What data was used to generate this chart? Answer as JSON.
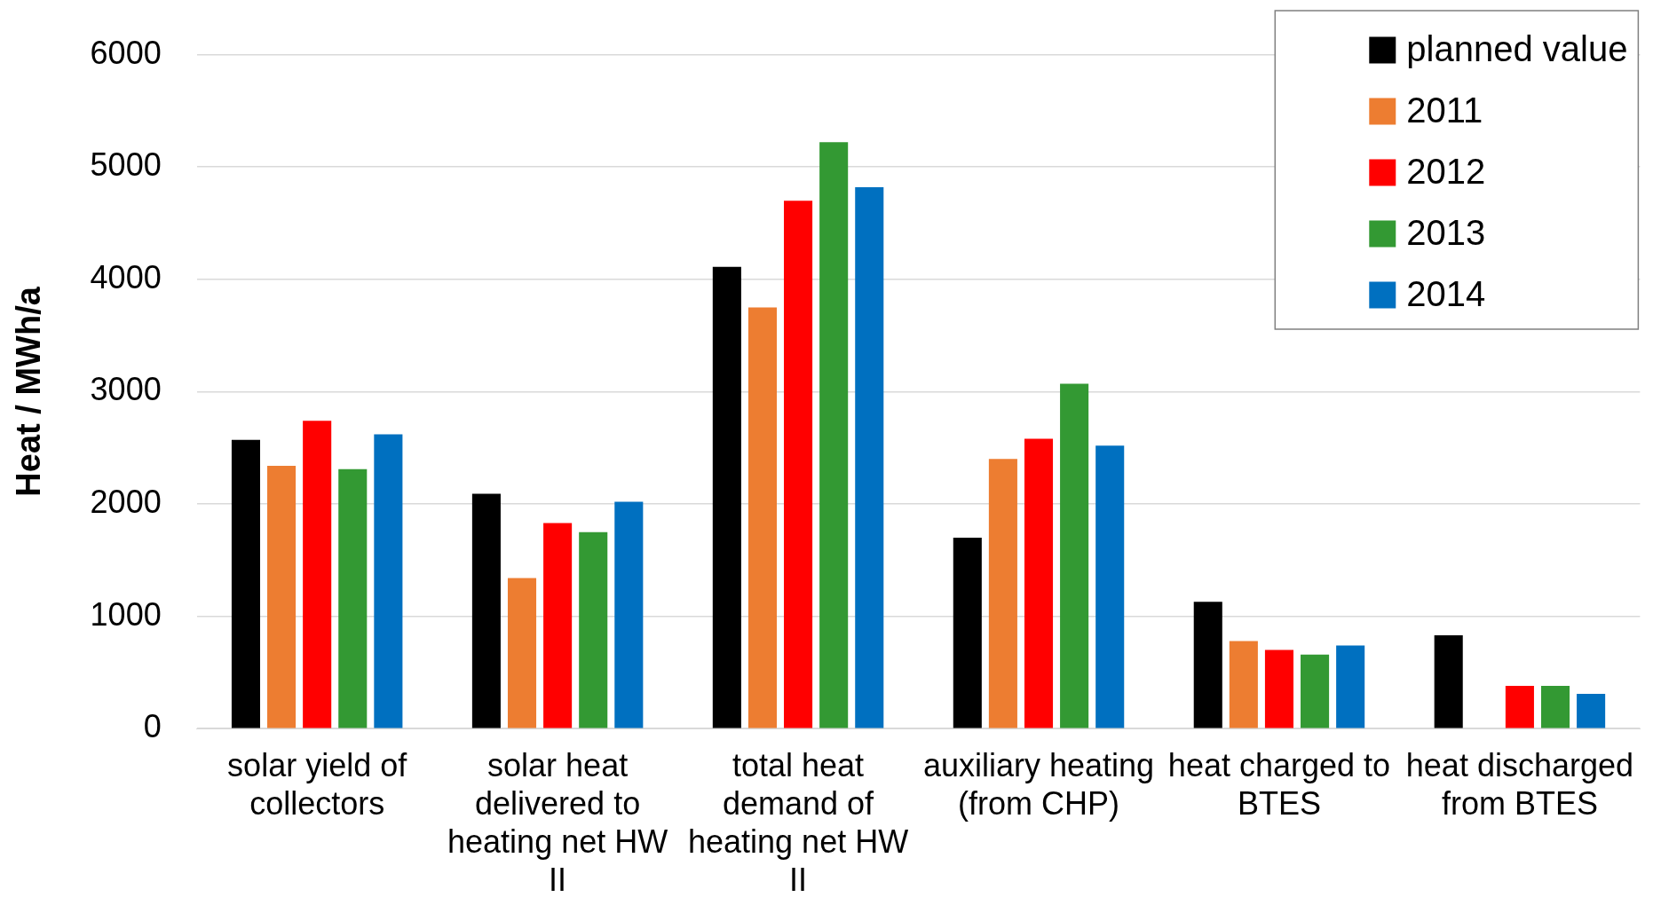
{
  "chart_data": {
    "type": "bar",
    "ylabel": "Heat / MWh/a",
    "categories": [
      "solar yield of collectors",
      "solar heat delivered to heating net HW II",
      "total heat demand of heating net HW II",
      "auxiliary heating (from CHP)",
      "heat charged to BTES",
      "heat discharged from BTES"
    ],
    "series": [
      {
        "name": "planned value",
        "color": "#000000",
        "values": [
          2570,
          2090,
          4110,
          1700,
          1130,
          830
        ]
      },
      {
        "name": "2011",
        "color": "#ed7d31",
        "values": [
          2340,
          1340,
          3750,
          2400,
          780,
          null
        ]
      },
      {
        "name": "2012",
        "color": "#ff0000",
        "values": [
          2740,
          1830,
          4700,
          2580,
          700,
          380
        ]
      },
      {
        "name": "2013",
        "color": "#339933",
        "values": [
          2310,
          1750,
          5220,
          3070,
          660,
          380
        ]
      },
      {
        "name": "2014",
        "color": "#0070c0",
        "values": [
          2620,
          2020,
          4820,
          2520,
          740,
          310
        ]
      }
    ],
    "ylim": [
      0,
      6000
    ],
    "yticks": [
      0,
      1000,
      2000,
      3000,
      4000,
      5000,
      6000
    ],
    "grid": "y",
    "legend": "top right"
  }
}
